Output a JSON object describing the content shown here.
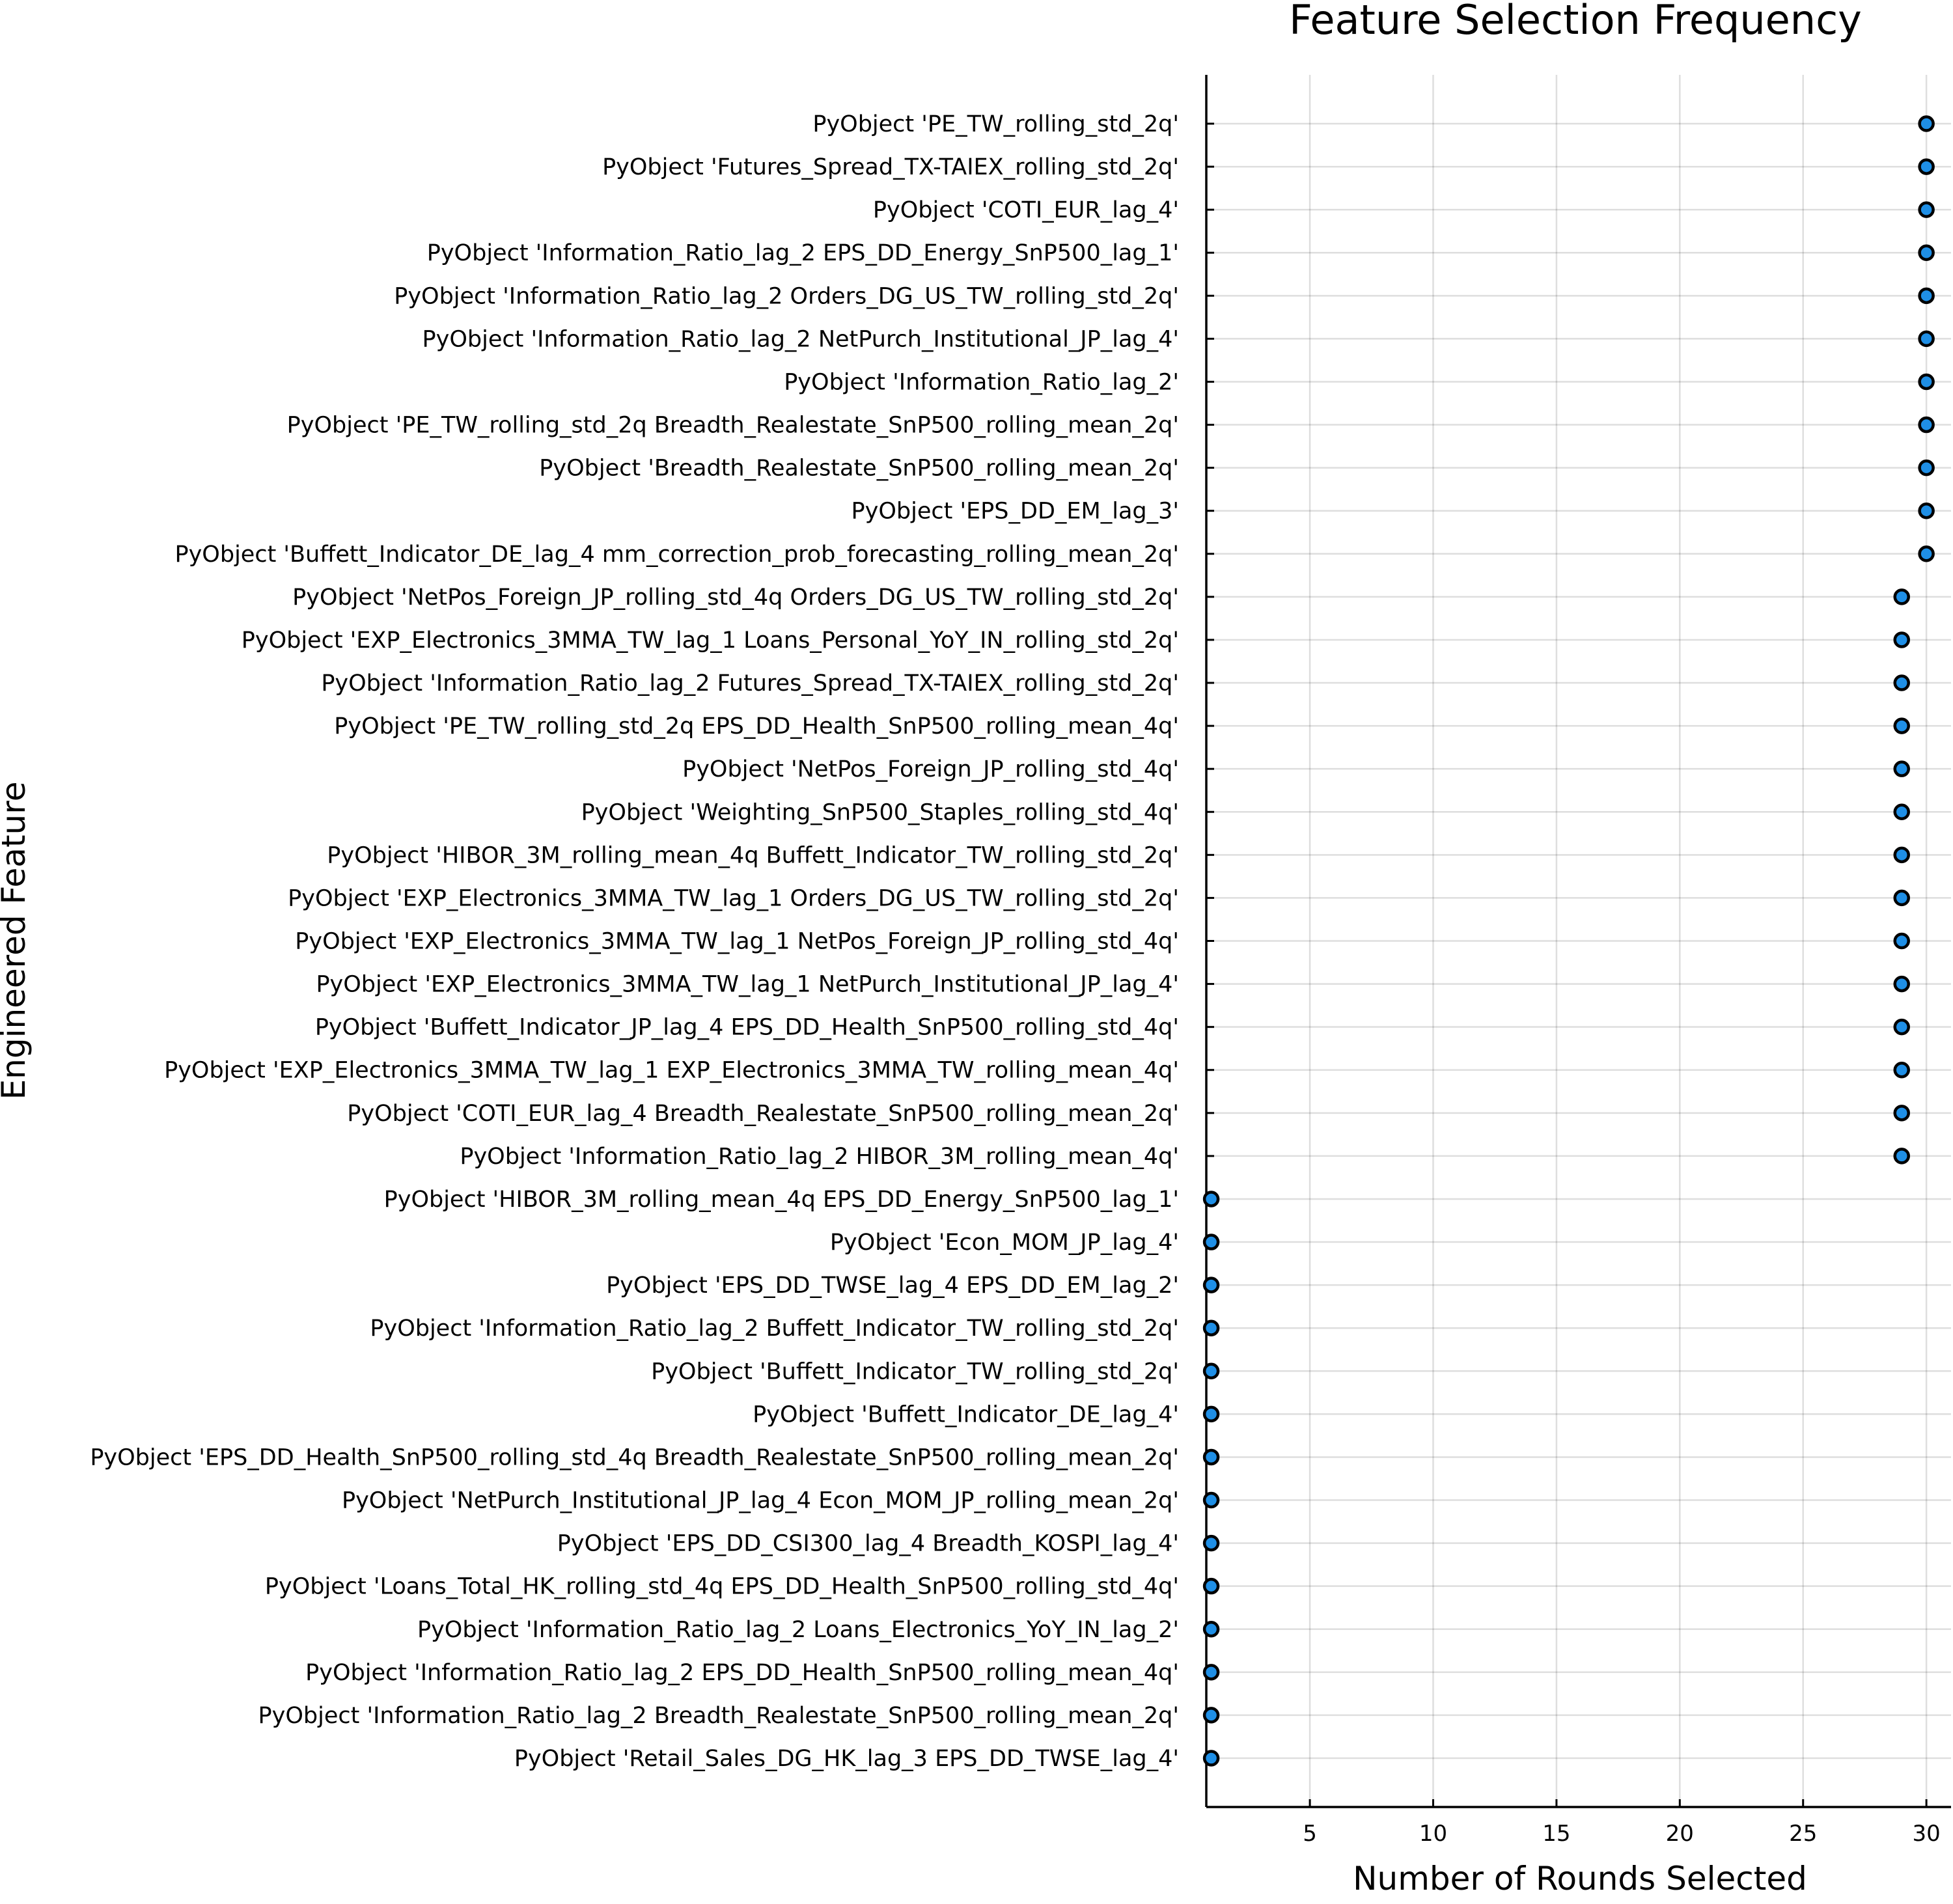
{
  "chart_data": {
    "type": "scatter",
    "title": "Feature Selection Frequency",
    "xlabel": "Number of Rounds Selected",
    "ylabel": "Engineered Feature",
    "xlim": [
      0.8,
      31
    ],
    "xticks": [
      5,
      10,
      15,
      20,
      25,
      30
    ],
    "grid": true,
    "legend": "none",
    "marker_color": "#1f8fe6",
    "categories": [
      "PyObject 'PE_TW_rolling_std_2q'",
      "PyObject 'Futures_Spread_TX-TAIEX_rolling_std_2q'",
      "PyObject 'COTI_EUR_lag_4'",
      "PyObject 'Information_Ratio_lag_2 EPS_DD_Energy_SnP500_lag_1'",
      "PyObject 'Information_Ratio_lag_2 Orders_DG_US_TW_rolling_std_2q'",
      "PyObject 'Information_Ratio_lag_2 NetPurch_Institutional_JP_lag_4'",
      "PyObject 'Information_Ratio_lag_2'",
      "PyObject 'PE_TW_rolling_std_2q Breadth_Realestate_SnP500_rolling_mean_2q'",
      "PyObject 'Breadth_Realestate_SnP500_rolling_mean_2q'",
      "PyObject 'EPS_DD_EM_lag_3'",
      "PyObject 'Buffett_Indicator_DE_lag_4 mm_correction_prob_forecasting_rolling_mean_2q'",
      "PyObject 'NetPos_Foreign_JP_rolling_std_4q Orders_DG_US_TW_rolling_std_2q'",
      "PyObject 'EXP_Electronics_3MMA_TW_lag_1 Loans_Personal_YoY_IN_rolling_std_2q'",
      "PyObject 'Information_Ratio_lag_2 Futures_Spread_TX-TAIEX_rolling_std_2q'",
      "PyObject 'PE_TW_rolling_std_2q EPS_DD_Health_SnP500_rolling_mean_4q'",
      "PyObject 'NetPos_Foreign_JP_rolling_std_4q'",
      "PyObject 'Weighting_SnP500_Staples_rolling_std_4q'",
      "PyObject 'HIBOR_3M_rolling_mean_4q Buffett_Indicator_TW_rolling_std_2q'",
      "PyObject 'EXP_Electronics_3MMA_TW_lag_1 Orders_DG_US_TW_rolling_std_2q'",
      "PyObject 'EXP_Electronics_3MMA_TW_lag_1 NetPos_Foreign_JP_rolling_std_4q'",
      "PyObject 'EXP_Electronics_3MMA_TW_lag_1 NetPurch_Institutional_JP_lag_4'",
      "PyObject 'Buffett_Indicator_JP_lag_4 EPS_DD_Health_SnP500_rolling_std_4q'",
      "PyObject 'EXP_Electronics_3MMA_TW_lag_1 EXP_Electronics_3MMA_TW_rolling_mean_4q'",
      "PyObject 'COTI_EUR_lag_4 Breadth_Realestate_SnP500_rolling_mean_2q'",
      "PyObject 'Information_Ratio_lag_2 HIBOR_3M_rolling_mean_4q'",
      "PyObject 'HIBOR_3M_rolling_mean_4q EPS_DD_Energy_SnP500_lag_1'",
      "PyObject 'Econ_MOM_JP_lag_4'",
      "PyObject 'EPS_DD_TWSE_lag_4 EPS_DD_EM_lag_2'",
      "PyObject 'Information_Ratio_lag_2 Buffett_Indicator_TW_rolling_std_2q'",
      "PyObject 'Buffett_Indicator_TW_rolling_std_2q'",
      "PyObject 'Buffett_Indicator_DE_lag_4'",
      "PyObject 'EPS_DD_Health_SnP500_rolling_std_4q Breadth_Realestate_SnP500_rolling_mean_2q'",
      "PyObject 'NetPurch_Institutional_JP_lag_4 Econ_MOM_JP_rolling_mean_2q'",
      "PyObject 'EPS_DD_CSI300_lag_4 Breadth_KOSPI_lag_4'",
      "PyObject 'Loans_Total_HK_rolling_std_4q EPS_DD_Health_SnP500_rolling_std_4q'",
      "PyObject 'Information_Ratio_lag_2 Loans_Electronics_YoY_IN_lag_2'",
      "PyObject 'Information_Ratio_lag_2 EPS_DD_Health_SnP500_rolling_mean_4q'",
      "PyObject 'Information_Ratio_lag_2 Breadth_Realestate_SnP500_rolling_mean_2q'",
      "PyObject 'Retail_Sales_DG_HK_lag_3 EPS_DD_TWSE_lag_4'"
    ],
    "values": [
      30,
      30,
      30,
      30,
      30,
      30,
      30,
      30,
      30,
      30,
      30,
      29,
      29,
      29,
      29,
      29,
      29,
      29,
      29,
      29,
      29,
      29,
      29,
      29,
      29,
      1,
      1,
      1,
      1,
      1,
      1,
      1,
      1,
      1,
      1,
      1,
      1,
      1,
      1
    ]
  }
}
